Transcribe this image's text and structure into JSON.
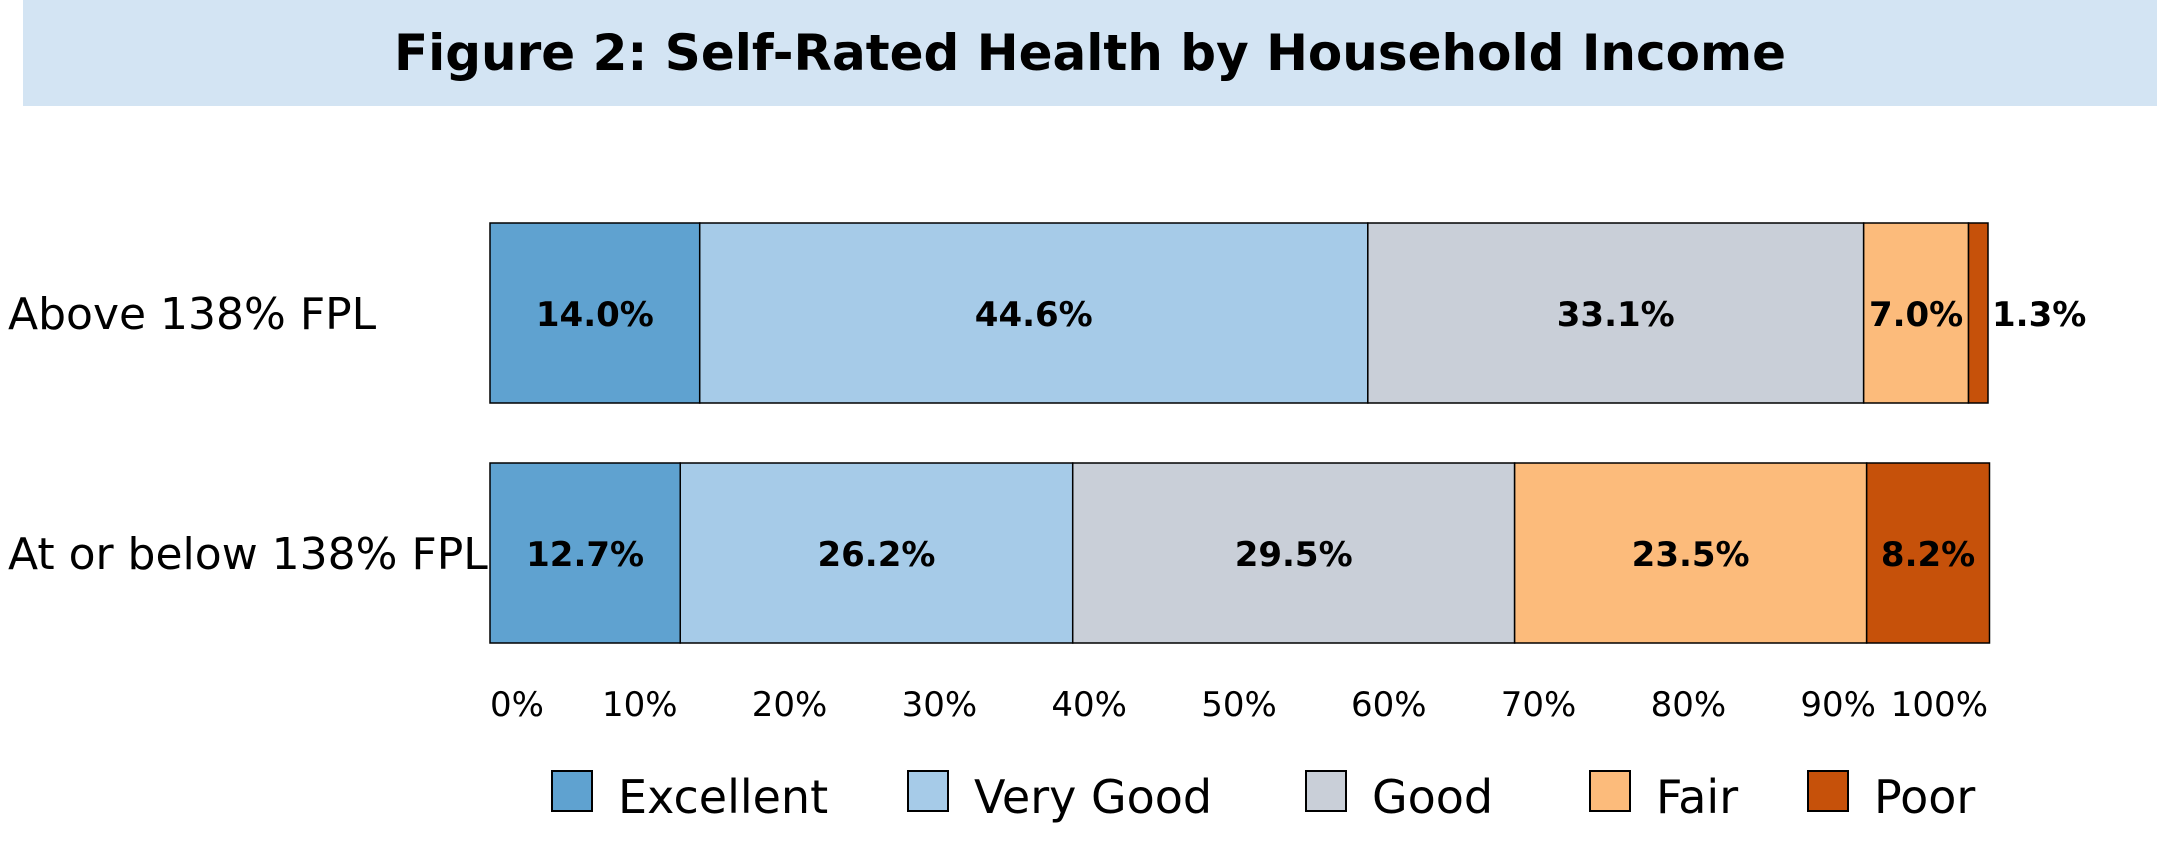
{
  "chart_data": {
    "type": "bar",
    "orientation": "horizontal",
    "stacked": true,
    "title": "Figure 2: Self-Rated Health by Household Income",
    "categories": [
      "Above 138% FPL",
      "At or below 138% FPL"
    ],
    "series": [
      {
        "name": "Excellent",
        "color": "#5fa2d0",
        "values": [
          14.0,
          12.7
        ],
        "labels": [
          "14.0%",
          "12.7%"
        ]
      },
      {
        "name": "Very Good",
        "color": "#a6cbe8",
        "values": [
          44.6,
          26.2
        ],
        "labels": [
          "44.6%",
          "26.2%"
        ]
      },
      {
        "name": "Good",
        "color": "#c9cfd8",
        "values": [
          33.1,
          29.5
        ],
        "labels": [
          "33.1%",
          "29.5%"
        ]
      },
      {
        "name": "Fair",
        "color": "#fcbb7b",
        "values": [
          7.0,
          23.5
        ],
        "labels": [
          "7.0%",
          "23.5%"
        ]
      },
      {
        "name": "Poor",
        "color": "#c6510a",
        "values": [
          1.3,
          8.2
        ],
        "labels": [
          "1.3%",
          "8.2%"
        ]
      }
    ],
    "xlim": [
      0,
      100
    ],
    "x_ticks": [
      0,
      10,
      20,
      30,
      40,
      50,
      60,
      70,
      80,
      90,
      100
    ],
    "x_tick_labels": [
      "0%",
      "10%",
      "20%",
      "30%",
      "40%",
      "50%",
      "60%",
      "70%",
      "80%",
      "90%",
      "100%"
    ],
    "grid": false,
    "legend": "bottom"
  }
}
